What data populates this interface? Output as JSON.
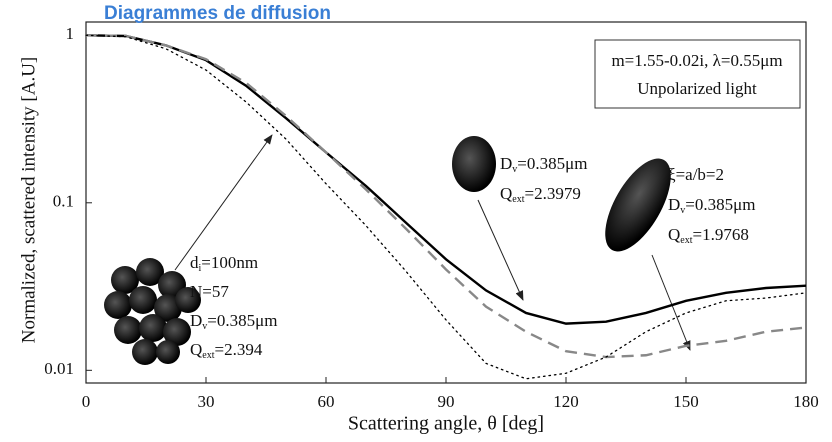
{
  "header": {
    "title": "Diagrammes de diffusion"
  },
  "chart_data": {
    "type": "line",
    "log_y": true,
    "xlabel": "Scattering angle, θ [deg]",
    "ylabel": "Normalized, scattered intensity  [A.U]",
    "x": [
      0,
      10,
      20,
      30,
      40,
      50,
      60,
      70,
      80,
      90,
      100,
      110,
      120,
      130,
      140,
      150,
      160,
      170,
      180
    ],
    "series": [
      {
        "color": "#000000",
        "dash": "solid",
        "values": [
          1,
          0.99,
          0.87,
          0.71,
          0.5,
          0.32,
          0.2,
          0.126,
          0.076,
          0.046,
          0.03,
          0.022,
          0.019,
          0.0195,
          0.022,
          0.026,
          0.029,
          0.031,
          0.032
        ]
      },
      {
        "color": "#888888",
        "dash": "dashed",
        "values": [
          1,
          0.99,
          0.87,
          0.72,
          0.52,
          0.33,
          0.2,
          0.12,
          0.07,
          0.04,
          0.024,
          0.017,
          0.013,
          0.012,
          0.0123,
          0.014,
          0.015,
          0.017,
          0.018
        ]
      },
      {
        "color": "#000000",
        "dash": "dotted",
        "values": [
          1,
          0.98,
          0.83,
          0.62,
          0.4,
          0.24,
          0.13,
          0.073,
          0.039,
          0.02,
          0.011,
          0.0089,
          0.0096,
          0.012,
          0.017,
          0.022,
          0.026,
          0.027,
          0.029
        ]
      }
    ],
    "xlim": [
      0,
      180
    ],
    "xticks": [
      0,
      30,
      60,
      90,
      120,
      150,
      180
    ],
    "ylim": [
      0.0084,
      1.2
    ],
    "yticks": [
      1,
      0.1,
      0.01
    ],
    "annotations": [
      {
        "lines": [
          {
            "text": "m=1.55-0.02i, λ=0.55μm"
          },
          {
            "text": "Unpolarized light"
          }
        ]
      },
      {
        "lines": [
          {
            "text": "d",
            "sub": "i",
            "rest": "=100nm"
          },
          {
            "text": "N=57"
          },
          {
            "text": "D",
            "sub": "v",
            "rest": "=0.385μm"
          },
          {
            "text": "Q",
            "sub": "ext",
            "rest": "=2.394"
          }
        ]
      },
      {
        "lines": [
          {
            "text": "D",
            "sub": "v",
            "rest": "=0.385μm"
          },
          {
            "text": "Q",
            "sub": "ext",
            "rest": "=2.3979"
          }
        ]
      },
      {
        "lines": [
          {
            "text": "ξ=a/b=2"
          },
          {
            "text": "D",
            "sub": "v",
            "rest": "=0.385μm"
          },
          {
            "text": "Q",
            "sub": "ext",
            "rest": "=1.9768"
          }
        ]
      }
    ]
  }
}
